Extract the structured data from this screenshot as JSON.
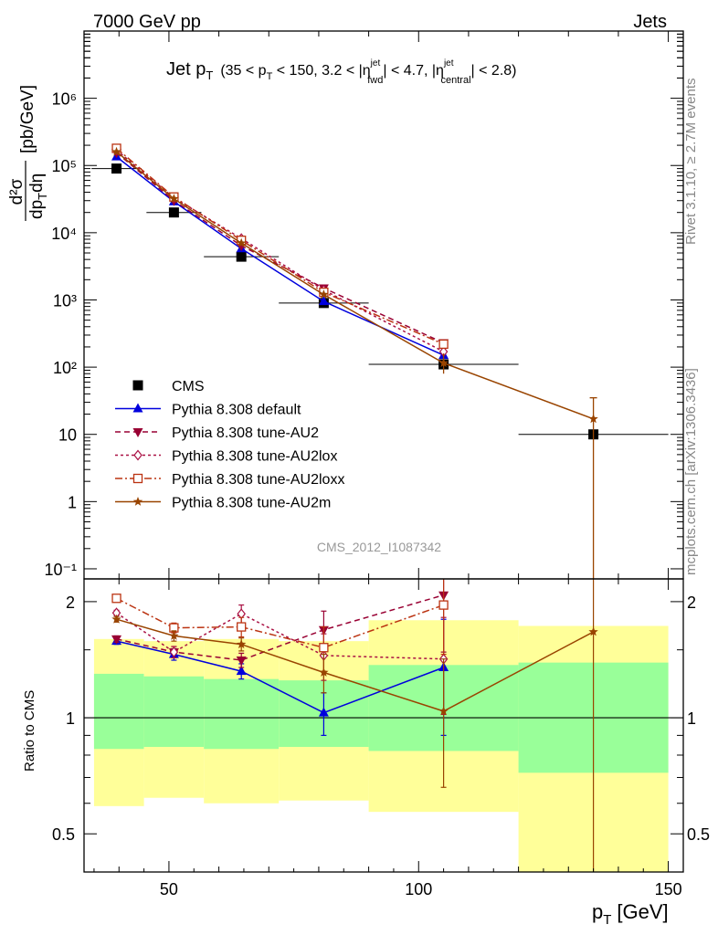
{
  "header": {
    "left": "7000 GeV pp",
    "right": "Jets"
  },
  "side_labels": {
    "rivet": "Rivet 3.1.10, ≥ 2.7M events",
    "mcplots": "mcplots.cern.ch [arXiv:1306.3436]"
  },
  "title": {
    "main": "Jet p",
    "main_sub": "T",
    "cond_open": "(35 < p",
    "cond_sub1": "T",
    "cond_mid": " < 150, 3.2 < |η",
    "cond_sup2": "jet",
    "cond_sub2": "fwd",
    "cond_mid2": "| < 4.7, |η",
    "cond_sup3": "jet",
    "cond_sub3": "central",
    "cond_close": "| < 2.8)"
  },
  "watermark": "CMS_2012_I1087342",
  "axes": {
    "ylabel_top_num": "d²σ",
    "ylabel_top_den": "dp",
    "ylabel_top_den_sub": "T",
    "ylabel_top_den_end": "dη",
    "ylabel_top_unit": "[pb/GeV]",
    "ylabel_bottom": "Ratio to CMS",
    "xlabel": "p",
    "xlabel_sub": "T",
    "xlabel_unit": "[GeV]",
    "x_ticks": [
      "50",
      "100",
      "150"
    ],
    "y_ticks_top": [
      "10⁻¹",
      "1",
      "10",
      "10²",
      "10³",
      "10⁴",
      "10⁵",
      "10⁶"
    ],
    "y_ticks_bottom": [
      "0.5",
      "1",
      "2"
    ]
  },
  "colors": {
    "default": "#0000dd",
    "au2": "#990033",
    "au2lox": "#aa1144",
    "au2loxx": "#bb3311",
    "au2m": "#994400",
    "band_inner": "#99ff99",
    "band_outer": "#ffff99",
    "data": "#000000"
  },
  "chart_data": [
    {
      "type": "line",
      "panel": "main",
      "x_range": [
        33,
        153
      ],
      "y_range_log10": [
        -1.15,
        7
      ],
      "y_log": true,
      "legend_position": "left-middle",
      "series": [
        {
          "name": "CMS",
          "style": "data",
          "x": [
            39.5,
            51,
            64.5,
            81,
            105,
            135
          ],
          "xerr": [
            5,
            5.5,
            7.5,
            9,
            15,
            15
          ],
          "y": [
            90000,
            20000,
            4400,
            900,
            110,
            10
          ]
        },
        {
          "name": "Pythia 8.308 default",
          "style": "default",
          "x": [
            39.5,
            51,
            64.5,
            81,
            105
          ],
          "y": [
            135000,
            29000,
            5800,
            950,
            150
          ]
        },
        {
          "name": "Pythia 8.308 tune-AU2",
          "style": "au2",
          "x": [
            39.5,
            51,
            64.5,
            81,
            105
          ],
          "y": [
            155000,
            30000,
            6400,
            1500,
            230
          ]
        },
        {
          "name": "Pythia 8.308 tune-AU2lox",
          "style": "au2lox",
          "x": [
            39.5,
            51,
            64.5,
            81,
            105
          ],
          "y": [
            170000,
            33000,
            8200,
            1400,
            170
          ]
        },
        {
          "name": "Pythia 8.308 tune-AU2loxx",
          "style": "au2loxx",
          "x": [
            39.5,
            51,
            64.5,
            81,
            105
          ],
          "y": [
            180000,
            34000,
            7700,
            1300,
            220
          ]
        },
        {
          "name": "Pythia 8.308 tune-AU2m",
          "style": "au2m",
          "x": [
            39.5,
            51,
            64.5,
            81,
            105,
            135
          ],
          "y": [
            160000,
            32000,
            7000,
            1200,
            115,
            17
          ]
        }
      ]
    },
    {
      "type": "line",
      "panel": "ratio",
      "x_range": [
        33,
        153
      ],
      "y_range_log10": [
        -0.4,
        0.36
      ],
      "y_log": true,
      "bands": [
        {
          "x0": 35,
          "x1": 45,
          "inner": [
            0.83,
            1.3
          ],
          "outer": [
            0.59,
            1.6
          ]
        },
        {
          "x0": 45,
          "x1": 57,
          "inner": [
            0.84,
            1.28
          ],
          "outer": [
            0.62,
            1.58
          ]
        },
        {
          "x0": 57,
          "x1": 72,
          "inner": [
            0.83,
            1.26
          ],
          "outer": [
            0.6,
            1.6
          ]
        },
        {
          "x0": 72,
          "x1": 90,
          "inner": [
            0.84,
            1.25
          ],
          "outer": [
            0.61,
            1.58
          ]
        },
        {
          "x0": 90,
          "x1": 120,
          "inner": [
            0.82,
            1.37
          ],
          "outer": [
            0.57,
            1.79
          ]
        },
        {
          "x0": 120,
          "x1": 150,
          "inner": [
            0.72,
            1.39
          ],
          "outer": [
            0.35,
            1.73
          ]
        }
      ],
      "series": [
        {
          "name": "Pythia 8.308 default",
          "style": "default",
          "x": [
            39.5,
            51,
            64.5,
            81,
            105
          ],
          "y": [
            1.58,
            1.46,
            1.32,
            1.03,
            1.35
          ],
          "err": [
            0.03,
            0.05,
            0.06,
            0.13,
            0.45
          ]
        },
        {
          "name": "Pythia 8.308 tune-AU2",
          "style": "au2",
          "x": [
            39.5,
            51,
            64.5,
            81,
            105
          ],
          "y": [
            1.6,
            1.48,
            1.41,
            1.69,
            2.08
          ],
          "err": [
            0.03,
            0.05,
            0.06,
            0.2,
            0.6
          ]
        },
        {
          "name": "Pythia 8.308 tune-AU2lox",
          "style": "au2lox",
          "x": [
            39.5,
            51,
            64.5,
            81,
            105
          ],
          "y": [
            1.87,
            1.48,
            1.86,
            1.45,
            1.42
          ],
          "err": [
            0.03,
            0.05,
            0.1,
            0.2,
            0.4
          ]
        },
        {
          "name": "Pythia 8.308 tune-AU2loxx",
          "style": "au2loxx",
          "x": [
            39.5,
            51,
            64.5,
            81,
            105
          ],
          "y": [
            2.04,
            1.71,
            1.72,
            1.52,
            1.96
          ],
          "err": [
            0.03,
            0.05,
            0.1,
            0.2,
            0.5
          ]
        },
        {
          "name": "Pythia 8.308 tune-AU2m",
          "style": "au2m",
          "x": [
            39.5,
            51,
            64.5,
            81,
            105,
            135
          ],
          "y": [
            1.8,
            1.63,
            1.55,
            1.31,
            1.04,
            1.67
          ],
          "err_low": [
            0.03,
            0.05,
            0.06,
            0.15,
            0.38,
            1.4
          ],
          "err_high": [
            0.03,
            0.05,
            0.06,
            0.15,
            0.38,
            1.5
          ]
        }
      ]
    }
  ]
}
